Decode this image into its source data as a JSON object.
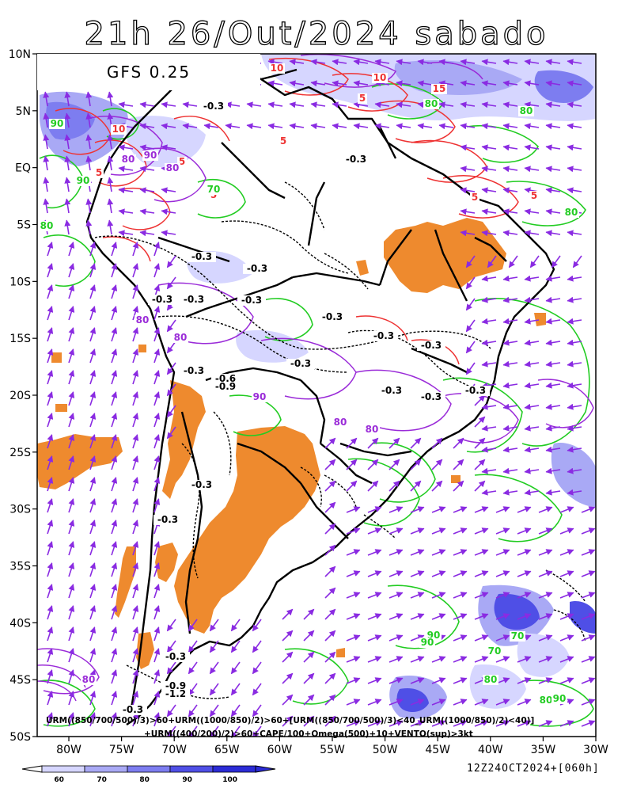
{
  "title": "21h 26/Out/2024 sabado",
  "model_label": "GFS 0.25",
  "caption_line1": "URM((850/700/500)/3)>60+URM((1000/850)/2)>60+[URM((850/700/500)/3)<40_URM((1000/850)/2)<40)]",
  "caption_line2": "+URM((400/200)/2)>60+CAPE/100+Omega(500)+10+VENTO(sup)>3kt",
  "run_label": "12Z24OCT2024+[060h]",
  "lat_labels": [
    "10N",
    "5N",
    "EQ",
    "5S",
    "10S",
    "15S",
    "20S",
    "25S",
    "30S",
    "35S",
    "40S",
    "45S",
    "50S"
  ],
  "lon_labels": [
    "80W",
    "75W",
    "70W",
    "65W",
    "60W",
    "55W",
    "50W",
    "45W",
    "40W",
    "35W",
    "30W"
  ],
  "colorbar": {
    "ticks": [
      "60",
      "70",
      "80",
      "90",
      "100"
    ],
    "colors": [
      "#d6d6ff",
      "#a9a9f5",
      "#7d7df0",
      "#4f4fe6",
      "#2b2bd6"
    ]
  },
  "colors": {
    "cape_orange": "#ee8a2e",
    "humidity_green": "#22cc22",
    "humidity_purple": "#9a2bd8",
    "omega_red": "#ee3333",
    "wind_arrow": "#8a2be2"
  },
  "contour_labels": {
    "red": [
      "10",
      "10",
      "15",
      "5",
      "5",
      "5",
      "10",
      "5",
      "5",
      "5",
      "5"
    ],
    "black": [
      "-0.3",
      "-0.3",
      "-0.3",
      "-0.3",
      "-0.3",
      "-0.3",
      "-0.3",
      "-0.3",
      "-0.3",
      "-0.3",
      "-0.3",
      "-0.3",
      "-0.6",
      "-0.9",
      "-0.3",
      "-0.3",
      "-0.3",
      "-0.3",
      "-0.3",
      "-0.3",
      "-0.9",
      "-1.2",
      "-0.3"
    ],
    "green": [
      "90",
      "90",
      "80",
      "70",
      "80",
      "80",
      "80",
      "90",
      "70",
      "80",
      "90",
      "70",
      "90",
      "80"
    ],
    "purple": [
      "80",
      "90",
      "80",
      "80",
      "80",
      "90",
      "80",
      "80",
      "80"
    ]
  }
}
